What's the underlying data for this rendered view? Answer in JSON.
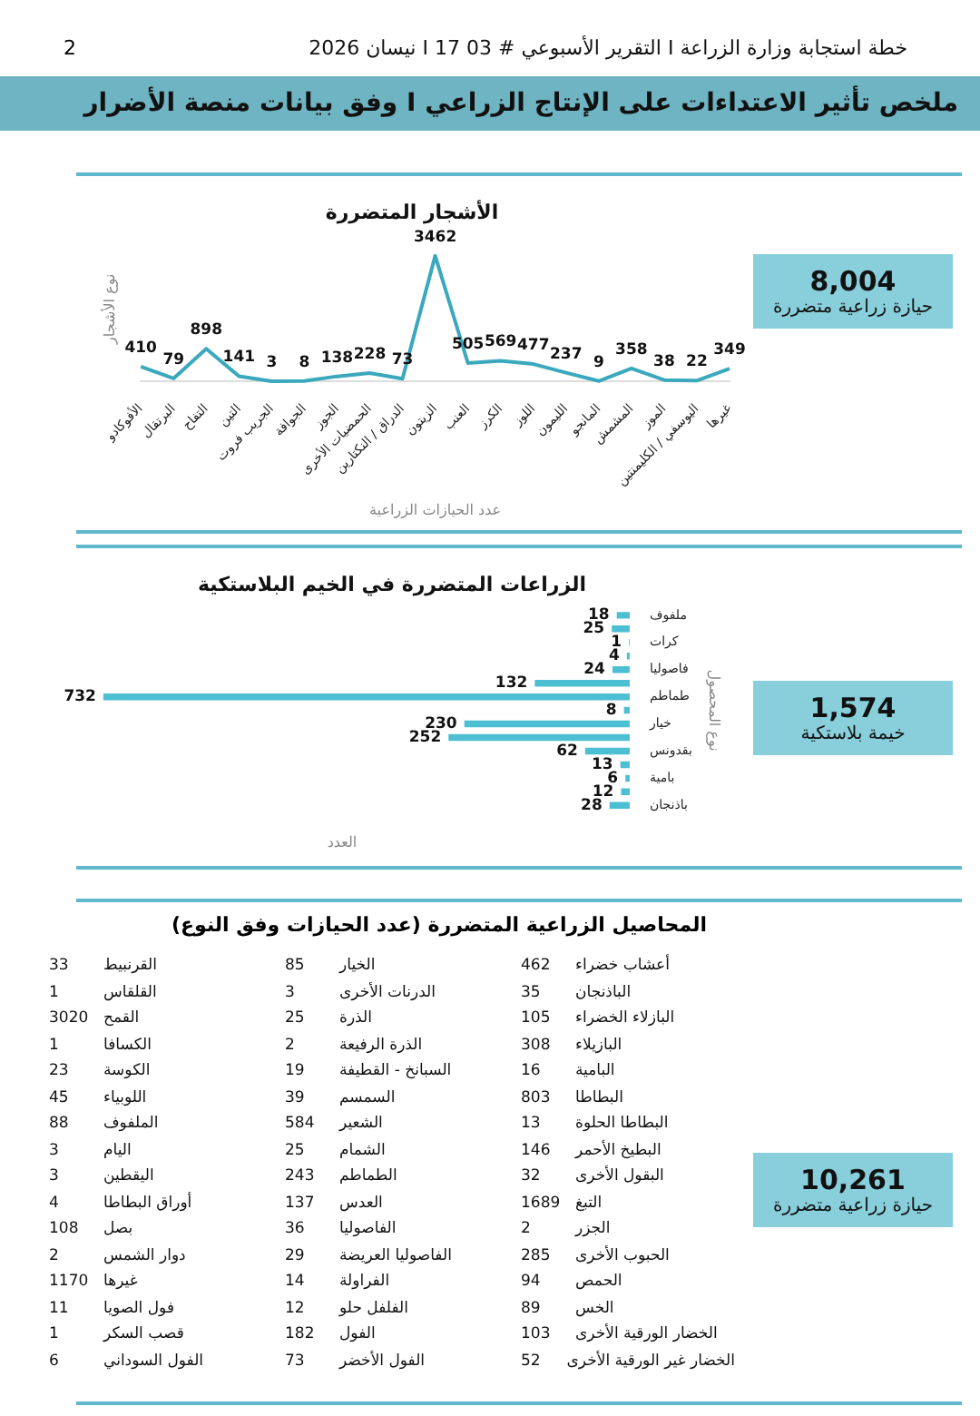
{
  "chart_data": [
    {
      "type": "line",
      "title": "الأشجار المتضررة",
      "xlabel": "عدد الحيازات الزراعية",
      "ylabel": "نوع الأشجار",
      "annotations": [
        "خطة استجابة وزارة الزراعة I التقرير الأسبوعي # 03  I  17 نيسان 2026",
        "2",
        "ملخص تأثير الاعتداءات على الإنتاج الزراعي I وفق بيانات منصة الأضرار",
        "8,004",
        "حيازة زراعية متضررة"
      ],
      "categories": [
        "الأفوكادو",
        "البرتقال",
        "التفاح",
        "التين",
        "الجريب فروت",
        "الجوافة",
        "الجوز",
        "الحمضيات الأخرى",
        "الدراق / النكتارين",
        "الزيتون",
        "العنب",
        "الكرز",
        "اللوز",
        "الليمون",
        "المانجو",
        "المشمش",
        "الموز",
        "اليوسفي / الكليمنتين",
        "غيرها"
      ],
      "values": [
        410,
        79,
        898,
        141,
        3,
        8,
        138,
        228,
        73,
        3462,
        505,
        569,
        477,
        237,
        9,
        358,
        38,
        22,
        349
      ],
      "color": "#3aa8bd",
      "data_labels": true,
      "legend": false,
      "grid": false,
      "marker": "none"
    },
    {
      "type": "bar",
      "orientation": "horizontal",
      "title": "الزراعات المتضررة في الخيم البلاستكية",
      "xlabel": "العدد",
      "ylabel": "نوع المحصول",
      "annotations": [
        "1,574",
        "خيمة بلاستكية"
      ],
      "categories": [
        "ملفوف",
        null,
        "كرات",
        null,
        "فاصوليا",
        null,
        "طماطم",
        null,
        "خيار",
        null,
        "بقدونس",
        null,
        "بامية",
        null,
        "باذنجان"
      ],
      "values": [
        18,
        25,
        1,
        4,
        24,
        132,
        732,
        8,
        230,
        252,
        62,
        13,
        6,
        12,
        28
      ],
      "color": "#4dbfd3",
      "data_labels": true,
      "legend": false,
      "grid": false
    },
    {
      "type": "other",
      "title": "المحاصيل الزراعية المتضررة (عدد الحيازات وفق النوع)",
      "annotations": [
        "10,261",
        "حيازة زراعية متضررة"
      ],
      "categories": [
        "أعشاب خضراء",
        "الباذنجان",
        "البازلاء الخضراء",
        "البازيلاء",
        "البامية",
        "البطاطا",
        "البطاطا الحلوة",
        "البطيخ الأحمر",
        "البقول الأخرى",
        "التبغ",
        "الجزر",
        "الحبوب الأخرى",
        "الحمص",
        "الخس",
        "الخضار الورقية الأخرى",
        "الخضار غير الورقية الأخرى",
        "الخيار",
        "الدرنات الأخرى",
        "الذرة",
        "الذرة الرفيعة",
        "السبانخ - القطيفة",
        "السمسم",
        "الشعير",
        "الشمام",
        "الطماطم",
        "العدس",
        "الفاصوليا",
        "الفاصوليا العريضة",
        "الفراولة",
        "الفلفل حلو",
        "الفول",
        "الفول الأخضر",
        "القرنبيط",
        "القلقاس",
        "القمح",
        "الكسافا",
        "الكوسة",
        "اللوبياء",
        "الملفوف",
        "اليام",
        "اليقطين",
        "أوراق البطاطا",
        "بصل",
        "دوار الشمس",
        "غيرها",
        "فول الصويا",
        "قصب السكر",
        "الفول السوداني"
      ],
      "values": [
        462,
        35,
        105,
        308,
        16,
        803,
        13,
        146,
        32,
        1689,
        2,
        285,
        94,
        89,
        103,
        52,
        85,
        3,
        25,
        2,
        19,
        39,
        584,
        25,
        243,
        137,
        36,
        29,
        14,
        12,
        182,
        73,
        33,
        1,
        3020,
        1,
        23,
        45,
        88,
        3,
        3,
        4,
        108,
        2,
        1170,
        11,
        1,
        6
      ],
      "data_labels": true
    }
  ]
}
